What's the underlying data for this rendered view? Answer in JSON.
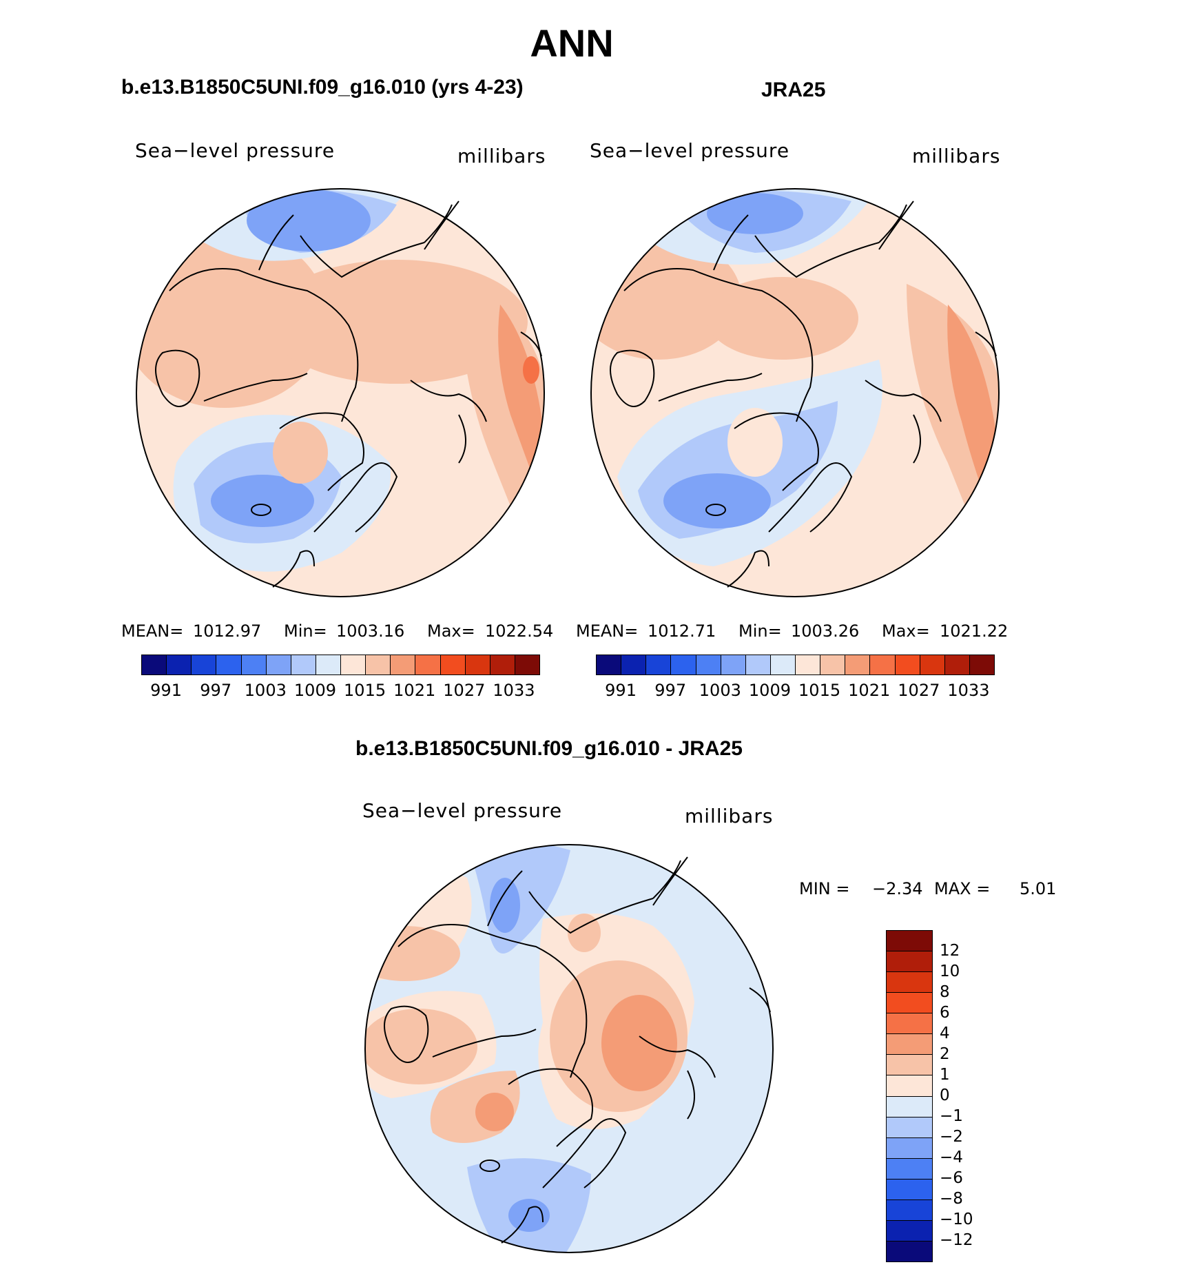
{
  "title": "ANN",
  "panels": {
    "model": {
      "title": "b.e13.B1850C5UNI.f09_g16.010 (yrs 4-23)",
      "field_label": "Sea−level pressure",
      "units": "millibars",
      "stats": {
        "mean_label": "MEAN=",
        "mean": "1012.97",
        "min_label": "Min=",
        "min": "1003.16",
        "max_label": "Max=",
        "max": "1022.54"
      }
    },
    "obs": {
      "title": "JRA25",
      "field_label": "Sea−level pressure",
      "units": "millibars",
      "stats": {
        "mean_label": "MEAN=",
        "mean": "1012.71",
        "min_label": "Min=",
        "min": "1003.26",
        "max_label": "Max=",
        "max": "1021.22"
      }
    },
    "diff": {
      "title": "b.e13.B1850C5UNI.f09_g16.010 - JRA25",
      "field_label": "Sea−level pressure",
      "units": "millibars",
      "min_label": "MIN =",
      "min": "−2.34",
      "max_label": "MAX =",
      "max": "5.01"
    }
  },
  "colorbars": {
    "abs_colors": [
      "#0a0a7a",
      "#0b22b0",
      "#1844d8",
      "#2c62ee",
      "#4d80f4",
      "#7ea3f7",
      "#b1c9fa",
      "#dceaf9",
      "#fde6d8",
      "#f7c3a8",
      "#f49c76",
      "#f57146",
      "#f24d1f",
      "#d9360f",
      "#b01e0a",
      "#7d0b06"
    ],
    "abs_ticks": [
      "991",
      "997",
      "1003",
      "1009",
      "1015",
      "1021",
      "1027",
      "1033"
    ],
    "diff_colors_top_to_bottom": [
      "#7d0b06",
      "#b01e0a",
      "#d9360f",
      "#f24d1f",
      "#f57146",
      "#f49c76",
      "#f7c3a8",
      "#fde6d8",
      "#dceaf9",
      "#b1c9fa",
      "#7ea3f7",
      "#4d80f4",
      "#2c62ee",
      "#1844d8",
      "#0b22b0",
      "#0a0a7a"
    ],
    "diff_ticks_top_to_bottom": [
      "12",
      "10",
      "8",
      "6",
      "4",
      "2",
      "1",
      "0",
      "−1",
      "−2",
      "−4",
      "−6",
      "−8",
      "−10",
      "−12"
    ]
  },
  "chart_data": [
    {
      "type": "heatmap",
      "projection": "north-polar-stereographic",
      "title": "b.e13.B1850C5UNI.f09_g16.010 (yrs 4-23)",
      "variable": "Sea-level pressure",
      "units": "millibars",
      "mean": 1012.97,
      "min": 1003.16,
      "max": 1022.54,
      "levels": [
        991,
        994,
        997,
        1000,
        1003,
        1006,
        1009,
        1012,
        1015,
        1018,
        1021,
        1024,
        1027,
        1030,
        1033
      ]
    },
    {
      "type": "heatmap",
      "projection": "north-polar-stereographic",
      "title": "JRA25",
      "variable": "Sea-level pressure",
      "units": "millibars",
      "mean": 1012.71,
      "min": 1003.26,
      "max": 1021.22,
      "levels": [
        991,
        994,
        997,
        1000,
        1003,
        1006,
        1009,
        1012,
        1015,
        1018,
        1021,
        1024,
        1027,
        1030,
        1033
      ]
    },
    {
      "type": "heatmap",
      "projection": "north-polar-stereographic",
      "title": "b.e13.B1850C5UNI.f09_g16.010 - JRA25",
      "variable": "Sea-level pressure",
      "units": "millibars",
      "min": -2.34,
      "max": 5.01,
      "levels": [
        -12,
        -10,
        -8,
        -6,
        -4,
        -2,
        -1,
        0,
        1,
        2,
        4,
        6,
        8,
        10,
        12
      ]
    }
  ]
}
